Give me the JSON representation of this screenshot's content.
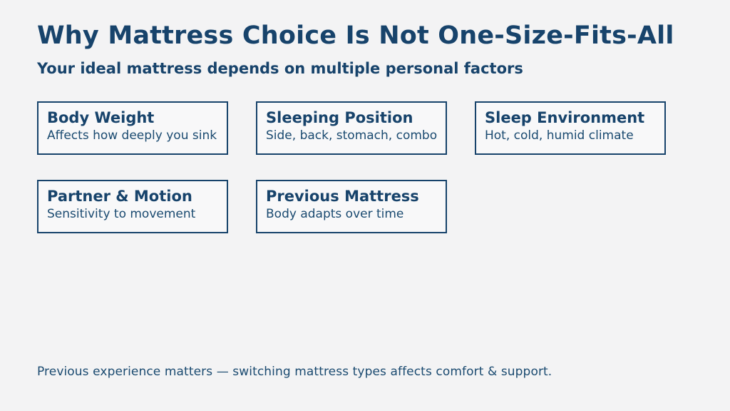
{
  "page": {
    "title": "Why Mattress Choice Is Not One-Size-Fits-All",
    "subtitle": "Your ideal mattress depends on multiple personal factors"
  },
  "cards": {
    "items": [
      {
        "title": "Body Weight",
        "description": "Affects how deeply you sink"
      },
      {
        "title": "Sleeping Position",
        "description": "Side, back, stomach, combo"
      },
      {
        "title": "Sleep Environment",
        "description": "Hot, cold, humid climate"
      },
      {
        "title": "Partner & Motion",
        "description": "Sensitivity to movement"
      },
      {
        "title": "Previous Mattress",
        "description": "Body adapts over time"
      }
    ]
  },
  "footer": {
    "note": "Previous experience matters — switching mattress types affects comfort & support."
  },
  "colors": {
    "background": "#f3f3f4",
    "card_background": "#f8f8f9",
    "accent_navy": "#17436B",
    "text_secondary": "#1A4A70"
  }
}
